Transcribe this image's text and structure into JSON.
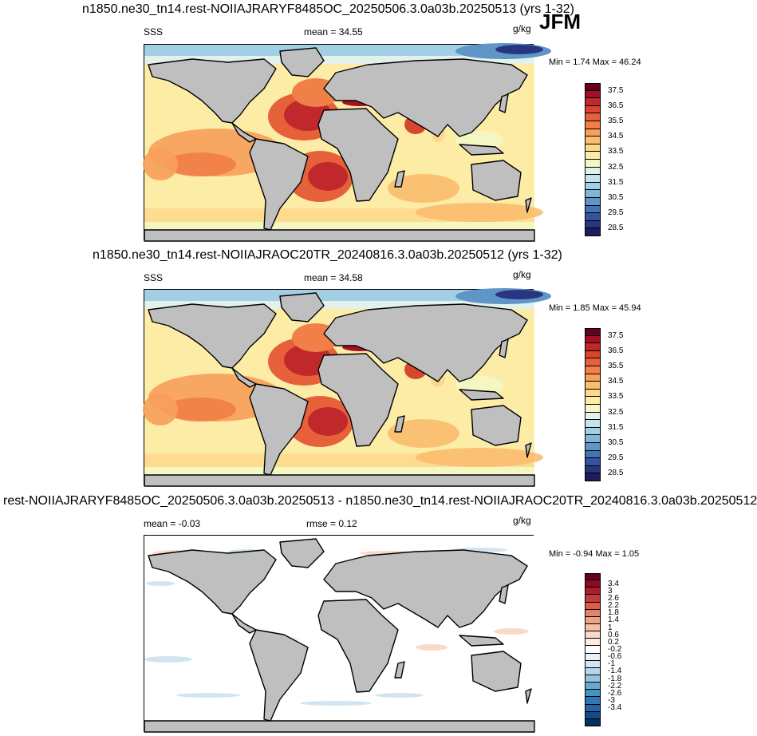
{
  "season": "JFM",
  "panels": [
    {
      "title": "n1850.ne30_tn14.rest-NOIIAJRARYF8485OC_20250506.3.0a03b.20250513 (yrs 1-32)",
      "left_label": "SSS",
      "mean_label": "mean =  34.55",
      "units": "g/kg",
      "minmax": "Min =   1.74 Max =  46.24",
      "kind": "abs"
    },
    {
      "title": "n1850.ne30_tn14.rest-NOIIAJRAOC20TR_20240816.3.0a03b.20250512 (yrs 1-32)",
      "left_label": "SSS",
      "mean_label": "mean =  34.58",
      "units": "g/kg",
      "minmax": "Min =   1.85 Max =  45.94",
      "kind": "abs"
    },
    {
      "title": "rest-NOIIAJRARYF8485OC_20250506.3.0a03b.20250513 - n1850.ne30_tn14.rest-NOIIAJRAOC20TR_20240816.3.0a03b.20250512",
      "left_label": "mean =  -0.03",
      "mean_label": "rmse =   0.12",
      "units": "g/kg",
      "minmax": "Min =  -0.94 Max =   1.05",
      "kind": "diff"
    }
  ],
  "colorbars": {
    "abs": {
      "labels": [
        "37.5",
        "36.5",
        "35.5",
        "34.5",
        "33.5",
        "32.5",
        "31.5",
        "30.5",
        "29.5",
        "28.5"
      ],
      "colors": [
        "#67001f",
        "#a50f25",
        "#c0282c",
        "#d7462f",
        "#e6613a",
        "#f08048",
        "#f7a05b",
        "#fbbd6e",
        "#fdd88b",
        "#fdeca6",
        "#f5f7c3",
        "#e2f1e9",
        "#c5e3ef",
        "#a3cfe6",
        "#82b6d9",
        "#5f95c7",
        "#4474b3",
        "#38539e",
        "#2a3582",
        "#1f1c59"
      ]
    },
    "diff": {
      "labels": [
        "3.4",
        "3",
        "2.6",
        "2.2",
        "1.8",
        "1.4",
        "1",
        "0.6",
        "0.2",
        "-0.2",
        "-0.6",
        "-1",
        "-1.4",
        "-1.8",
        "-2.2",
        "-2.6",
        "-3",
        "-3.4"
      ],
      "colors": [
        "#67001f",
        "#8a0b25",
        "#ad1e2c",
        "#c53a3a",
        "#d6604d",
        "#e48466",
        "#f0a285",
        "#f7bfa5",
        "#fbd9c7",
        "#fdebe0",
        "#ffffff",
        "#e9f2f8",
        "#d1e5f0",
        "#b5d6e8",
        "#92c5de",
        "#6aa8cf",
        "#4393c3",
        "#2f78b3",
        "#2166ac",
        "#154b85",
        "#053061"
      ]
    }
  }
}
